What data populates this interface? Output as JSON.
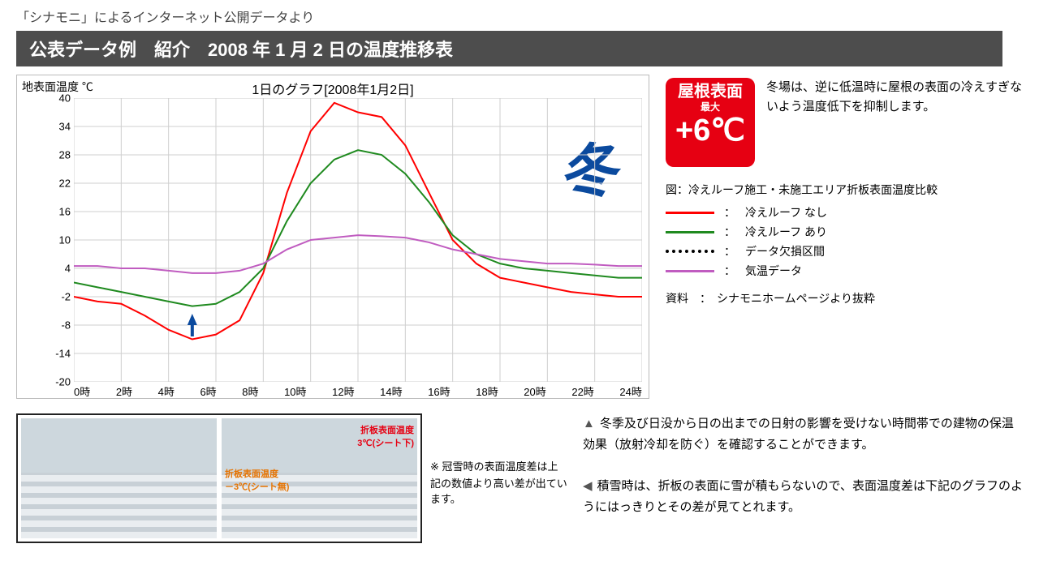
{
  "top_note": "「シナモニ」によるインターネット公開データより",
  "header": "公表データ例　紹介　2008 年 1 月 2 日の温度推移表",
  "chart": {
    "type": "line",
    "y_axis_label": "地表面温度 ℃",
    "title": "1日のグラフ[2008年1月2日]",
    "winter_label": "冬",
    "background_color": "#ffffff",
    "grid_color": "#cfcfcf",
    "border_color": "#bbbbbb",
    "x_ticks": [
      "0時",
      "2時",
      "4時",
      "6時",
      "8時",
      "10時",
      "12時",
      "14時",
      "16時",
      "18時",
      "20時",
      "22時",
      "24時"
    ],
    "xlim": [
      0,
      24
    ],
    "y_ticks": [
      -20,
      -14,
      -8,
      -2,
      4,
      10,
      16,
      22,
      28,
      34,
      40
    ],
    "ylim": [
      -20,
      40
    ],
    "arrow_marker": {
      "x_hour": 5.0,
      "y_temp": -8,
      "color": "#0b4a9e"
    },
    "series": [
      {
        "name": "red",
        "label": "冷えルーフ なし",
        "color": "#ff0000",
        "width": 2,
        "data_hourly": [
          -2,
          -3,
          -3.5,
          -6,
          -9,
          -11,
          -10,
          -7,
          3,
          20,
          33,
          39,
          37,
          36,
          30,
          20,
          10,
          5,
          2,
          1,
          0,
          -1,
          -1.5,
          -2,
          -2
        ]
      },
      {
        "name": "green",
        "label": "冷えルーフ あり",
        "color": "#1f8a1f",
        "width": 2,
        "data_hourly": [
          1,
          0,
          -1,
          -2,
          -3,
          -4,
          -3.5,
          -1,
          4,
          14,
          22,
          27,
          29,
          28,
          24,
          18,
          11,
          7,
          5,
          4,
          3.5,
          3,
          2.5,
          2,
          2
        ]
      },
      {
        "name": "purple",
        "label": "気温データ",
        "color": "#c05cc0",
        "width": 2,
        "data_hourly": [
          4.5,
          4.5,
          4,
          4,
          3.5,
          3,
          3,
          3.5,
          5,
          8,
          10,
          10.5,
          11,
          10.8,
          10.5,
          9.5,
          8,
          7,
          6,
          5.5,
          5,
          5,
          4.8,
          4.5,
          4.5
        ]
      }
    ]
  },
  "badge": {
    "bg": "#e60012",
    "line1": "屋根表面",
    "line2": "最大",
    "line3": "+6℃",
    "side_text": "冬場は、逆に低温時に屋根の表面の冷えすぎないよう温度低下を抑制します。"
  },
  "legend": {
    "title": "図：冷えルーフ施工・未施工エリア折板表面温度比較",
    "rows": [
      {
        "color": "#ff0000",
        "style": "solid",
        "label": "冷えルーフ なし"
      },
      {
        "color": "#1f8a1f",
        "style": "solid",
        "label": "冷えルーフ あり"
      },
      {
        "color": "#000000",
        "style": "dotted",
        "label": "データ欠損区間"
      },
      {
        "color": "#c05cc0",
        "style": "solid",
        "label": "気温データ"
      }
    ],
    "source": "資料　：　シナモニホームページより抜粋"
  },
  "photos": {
    "right_label_1": "折板表面温度\n3℃(シート下)",
    "right_label_2": "折板表面温度\n－3℃(シート無)",
    "note_prefix": "※",
    "note": "冠雪時の表面温度差は上記の数値より高い差が出ています。"
  },
  "bullets": {
    "b1": "冬季及び日没から日の出までの日射の影響を受けない時間帯での建物の保温効果（放射冷却を防ぐ）を確認することができます。",
    "b2": "積雪時は、折板の表面に雪が積もらないので、表面温度差は下記のグラフのようにはっきりとその差が見てとれます。"
  }
}
